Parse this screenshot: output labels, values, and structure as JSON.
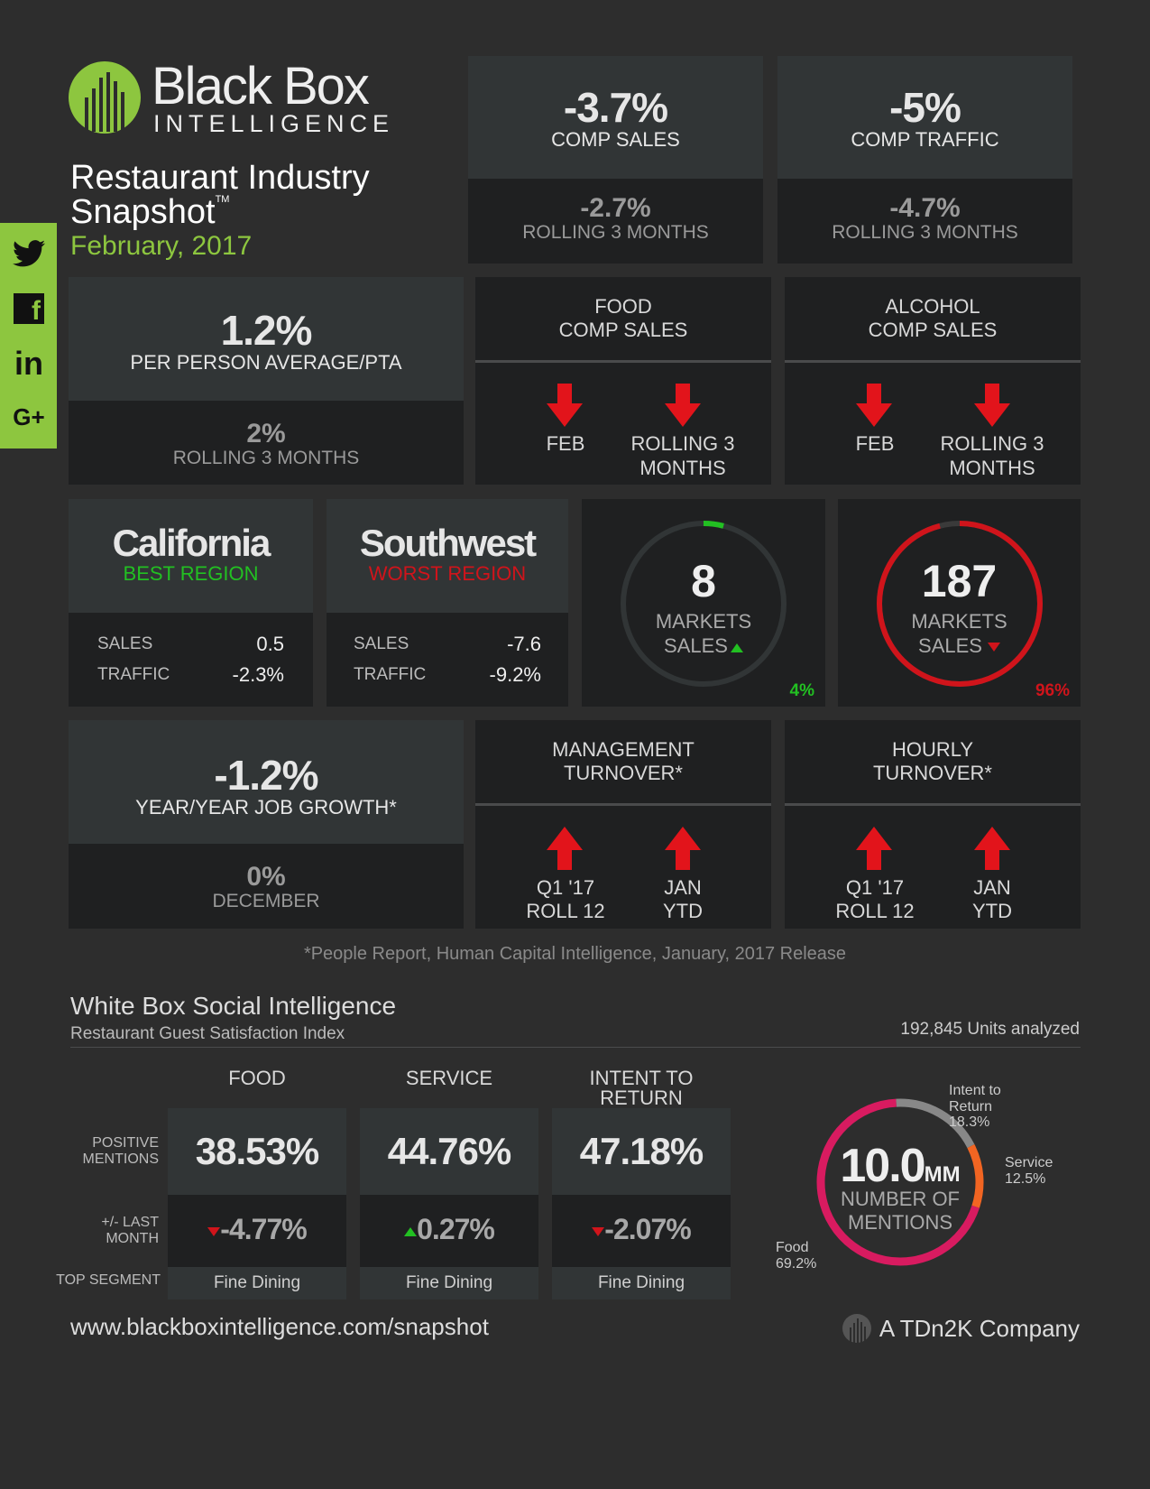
{
  "brand": {
    "name_line1": "Black Box",
    "name_line2": "INTELLIGENCE",
    "color_green": "#8dc63f"
  },
  "title": {
    "line1": "Restaurant Industry",
    "line2": "Snapshot",
    "tm": "TM",
    "date": "February, 2017"
  },
  "social": [
    "twitter-icon",
    "facebook-icon",
    "linkedin-icon",
    "googleplus-icon"
  ],
  "social_glyphs": {
    "linkedin": "in",
    "googleplus": "G+",
    "facebook": "f"
  },
  "comp_sales": {
    "value": "-3.7%",
    "label": "COMP SALES",
    "rolling_value": "-2.7%",
    "rolling_label": "ROLLING 3 MONTHS"
  },
  "comp_traffic": {
    "value": "-5%",
    "label": "COMP TRAFFIC",
    "rolling_value": "-4.7%",
    "rolling_label": "ROLLING 3 MONTHS"
  },
  "ppa": {
    "value": "1.2%",
    "label": "PER PERSON AVERAGE/PTA",
    "rolling_value": "2%",
    "rolling_label": "ROLLING 3 MONTHS"
  },
  "food_comp": {
    "title1": "FOOD",
    "title2": "COMP SALES",
    "left": "FEB",
    "right1": "ROLLING 3",
    "right2": "MONTHS",
    "direction": "down"
  },
  "alcohol_comp": {
    "title1": "ALCOHOL",
    "title2": "COMP SALES",
    "left": "FEB",
    "right1": "ROLLING 3",
    "right2": "MONTHS",
    "direction": "down"
  },
  "best_region": {
    "name": "California",
    "label": "BEST REGION",
    "sales_label": "SALES",
    "sales": "0.5",
    "traffic_label": "TRAFFIC",
    "traffic": "-2.3%"
  },
  "worst_region": {
    "name": "Southwest",
    "label": "WORST REGION",
    "sales_label": "SALES",
    "sales": "-7.6",
    "traffic_label": "TRAFFIC",
    "traffic": "-9.2%"
  },
  "markets_up": {
    "value": "8",
    "line1": "MARKETS",
    "line2": "SALES",
    "pct": "4%",
    "fraction": 0.04,
    "color": "#22c022"
  },
  "markets_down": {
    "value": "187",
    "line1": "MARKETS",
    "line2": "SALES",
    "pct": "96%",
    "fraction": 0.96,
    "color": "#d0141b"
  },
  "job_growth": {
    "value": "-1.2%",
    "label": "YEAR/YEAR JOB GROWTH*",
    "sub_value": "0%",
    "sub_label": "DECEMBER"
  },
  "mgmt_turnover": {
    "title1": "MANAGEMENT",
    "title2": "TURNOVER*",
    "left1": "Q1 '17",
    "left2": "ROLL 12",
    "right1": "JAN",
    "right2": "YTD",
    "direction": "up"
  },
  "hourly_turnover": {
    "title1": "HOURLY",
    "title2": "TURNOVER*",
    "left1": "Q1 '17",
    "left2": "ROLL 12",
    "right1": "JAN",
    "right2": "YTD",
    "direction": "up"
  },
  "footnote": "*People Report, Human Capital Intelligence, January, 2017 Release",
  "social_section": {
    "title": "White Box Social Intelligence",
    "subtitle": "Restaurant Guest Satisfaction Index",
    "units": "192,845 Units analyzed"
  },
  "gsi_table": {
    "row_positive": [
      "POSITIVE",
      "MENTIONS"
    ],
    "row_change": [
      "+/- LAST",
      "MONTH"
    ],
    "row_segment": "TOP SEGMENT",
    "columns": [
      {
        "header1": "FOOD",
        "header2": "",
        "positive": "38.53%",
        "change": "-4.77%",
        "dir": "down",
        "segment": "Fine Dining"
      },
      {
        "header1": "SERVICE",
        "header2": "",
        "positive": "44.76%",
        "change": "0.27%",
        "dir": "up",
        "segment": "Fine Dining"
      },
      {
        "header1": "INTENT TO",
        "header2": "RETURN",
        "positive": "47.18%",
        "change": "-2.07%",
        "dir": "down",
        "segment": "Fine Dining"
      }
    ]
  },
  "chart_data": {
    "type": "pie",
    "center_value": "10.0",
    "center_unit": "MM",
    "center_label1": "NUMBER OF",
    "center_label2": "MENTIONS",
    "slices": [
      {
        "name": "Food",
        "value": 69.2,
        "label": "69.2%",
        "color": "#d81b60"
      },
      {
        "name": "Intent to Return",
        "value": 18.3,
        "label": "18.3%",
        "color": "#888888"
      },
      {
        "name": "Service",
        "value": 12.5,
        "label": "12.5%",
        "color": "#f26522"
      }
    ]
  },
  "footer": {
    "url": "www.blackboxintelligence.com/snapshot",
    "company": "A TDn2K Company"
  },
  "colors": {
    "up_green": "#22c022",
    "down_red": "#d0141b",
    "arrow_red": "#e2141b"
  }
}
